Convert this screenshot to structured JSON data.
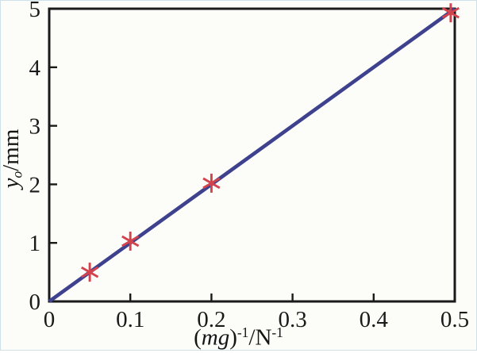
{
  "figure": {
    "background": "#fcfcf8",
    "border_color": "#cfe0e9"
  },
  "chart_data": {
    "type": "scatter",
    "title": "",
    "xlabel": "(mg)^-1/N^-1",
    "ylabel": "y_o/mm",
    "xlabel_parts": {
      "open": "(",
      "var": "mg",
      "close": ")",
      "sup1": "-1",
      "unit": "/N",
      "sup2": "-1"
    },
    "ylabel_parts": {
      "var": "y",
      "sub": "o",
      "unit": "/mm"
    },
    "xlim": [
      0,
      0.5
    ],
    "ylim": [
      0,
      5
    ],
    "xtick_values": [
      0,
      0.1,
      0.2,
      0.3,
      0.4,
      0.5
    ],
    "xtick_labels": [
      "0",
      "0.1",
      "0.2",
      "0.3",
      "0.4",
      "0.5"
    ],
    "ytick_values": [
      0,
      1,
      2,
      3,
      4,
      5
    ],
    "ytick_labels": [
      "0",
      "1",
      "2",
      "3",
      "4",
      "5"
    ],
    "grid": false,
    "legend": null,
    "axis_color": "#1a1a1a",
    "series": [
      {
        "name": "linear-fit",
        "type": "line",
        "color": "#3d418e",
        "points": [
          [
            0,
            0
          ],
          [
            0.5,
            5.0
          ]
        ]
      },
      {
        "name": "measured-points",
        "type": "scatter",
        "marker": "asterisk",
        "color": "#d2434d",
        "points": [
          [
            0.05,
            0.5
          ],
          [
            0.1,
            1.03
          ],
          [
            0.2,
            2.02
          ],
          [
            0.495,
            4.93
          ]
        ]
      }
    ]
  }
}
